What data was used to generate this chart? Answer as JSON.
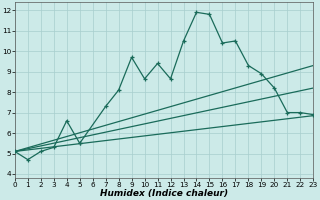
{
  "xlabel": "Humidex (Indice chaleur)",
  "xlim": [
    0,
    23
  ],
  "ylim": [
    3.8,
    12.4
  ],
  "yticks": [
    4,
    5,
    6,
    7,
    8,
    9,
    10,
    11,
    12
  ],
  "xticks": [
    0,
    1,
    2,
    3,
    4,
    5,
    6,
    7,
    8,
    9,
    10,
    11,
    12,
    13,
    14,
    15,
    16,
    17,
    18,
    19,
    20,
    21,
    22,
    23
  ],
  "bg_color": "#cceae8",
  "grid_color": "#a8cece",
  "line_color": "#1a6b5a",
  "main_x": [
    0,
    1,
    2,
    3,
    4,
    5,
    5,
    7,
    8,
    9,
    10,
    11,
    12,
    13,
    14,
    15,
    16,
    17,
    18,
    19,
    20,
    21,
    22,
    23
  ],
  "main_y": [
    5.1,
    4.7,
    5.1,
    5.3,
    6.6,
    5.5,
    5.5,
    7.3,
    8.1,
    9.7,
    8.65,
    9.4,
    8.65,
    10.5,
    11.9,
    11.8,
    10.4,
    10.5,
    9.3,
    8.9,
    8.2,
    7.0,
    7.0,
    6.9
  ],
  "trend1_x": [
    0,
    23
  ],
  "trend1_y": [
    5.1,
    9.3
  ],
  "trend2_x": [
    0,
    23
  ],
  "trend2_y": [
    5.1,
    8.2
  ],
  "trend3_x": [
    0,
    23
  ],
  "trend3_y": [
    5.1,
    6.85
  ]
}
